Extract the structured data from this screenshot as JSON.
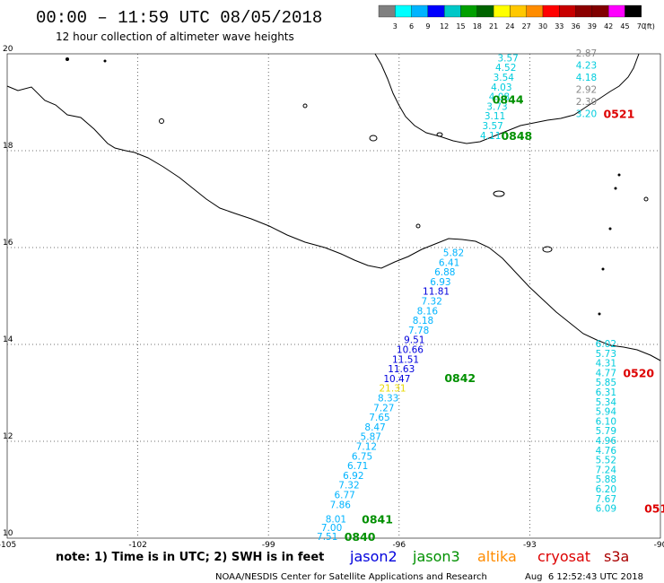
{
  "title": "00:00 – 11:59 UTC 08/05/2018",
  "subtitle": "12 hour collection of altimeter wave heights",
  "legend": {
    "ticks": [
      "3",
      "6",
      "9",
      "12",
      "15",
      "18",
      "21",
      "24",
      "27",
      "30",
      "33",
      "36",
      "39",
      "42",
      "45",
      "70"
    ],
    "unit": "(ft)",
    "colors": [
      "#808080",
      "#00ffff",
      "#00b4ff",
      "#0000ff",
      "#00c8c8",
      "#00a000",
      "#006400",
      "#ffff00",
      "#ffc800",
      "#ff8c00",
      "#ff0000",
      "#c80000",
      "#8b0000",
      "#800000",
      "#ff00ff",
      "#000000"
    ]
  },
  "footer": {
    "note": "note: 1) Time is in UTC; 2) SWH is in feet",
    "satellites": [
      {
        "name": "jason2",
        "color": "#0000dd"
      },
      {
        "name": "jason3",
        "color": "#009000"
      },
      {
        "name": "altika",
        "color": "#ff8c00"
      },
      {
        "name": "cryosat",
        "color": "#dd0000"
      },
      {
        "name": "s3a",
        "color": "#aa0000"
      }
    ],
    "credit": "NOAA/NESDIS Center for Satellite Applications and Research",
    "timestamp": "Aug  6 12:52:43 UTC 2018"
  },
  "chart_data": {
    "type": "scatter",
    "x_ticks": [
      "-105",
      "-102",
      "-99",
      "-96",
      "-93",
      "-90"
    ],
    "y_ticks": [
      "10",
      "12",
      "14",
      "16",
      "18",
      "20"
    ],
    "xlim": [
      -105,
      -90
    ],
    "ylim": [
      10,
      20
    ],
    "grid": true,
    "series": [
      {
        "points": [
          {
            "lon": -93.5,
            "lat": 19.9,
            "v": "3.57",
            "c": "#00ccdd"
          },
          {
            "lon": -93.55,
            "lat": 19.7,
            "v": "4.52",
            "c": "#00ccdd"
          },
          {
            "lon": -93.6,
            "lat": 19.5,
            "v": "3.54",
            "c": "#00ccdd"
          },
          {
            "lon": -93.65,
            "lat": 19.3,
            "v": "4.03",
            "c": "#00ccdd"
          },
          {
            "lon": -93.7,
            "lat": 19.1,
            "v": "4.08",
            "c": "#00ccdd"
          },
          {
            "lon": -93.75,
            "lat": 18.9,
            "v": "3.73",
            "c": "#00ccdd"
          },
          {
            "lon": -93.8,
            "lat": 18.7,
            "v": "3.11",
            "c": "#00ccdd"
          },
          {
            "lon": -93.85,
            "lat": 18.5,
            "v": "3.57",
            "c": "#00ccdd"
          },
          {
            "lon": -93.9,
            "lat": 18.3,
            "v": "4.11",
            "c": "#00ccdd"
          }
        ],
        "times": [
          {
            "lon": -93.5,
            "lat": 19.05,
            "t": "0844",
            "c": "#009000"
          },
          {
            "lon": -93.3,
            "lat": 18.3,
            "t": "0848",
            "c": "#009000"
          }
        ]
      },
      {
        "points": [
          {
            "lon": -91.7,
            "lat": 20.0,
            "v": "2.87",
            "c": "#888888"
          },
          {
            "lon": -91.7,
            "lat": 19.75,
            "v": "4.23",
            "c": "#00ccdd"
          },
          {
            "lon": -91.7,
            "lat": 19.5,
            "v": "4.18",
            "c": "#00ccdd"
          },
          {
            "lon": -91.7,
            "lat": 19.25,
            "v": "2.92",
            "c": "#888888"
          },
          {
            "lon": -91.7,
            "lat": 19.0,
            "v": "2.30",
            "c": "#888888"
          },
          {
            "lon": -91.7,
            "lat": 18.75,
            "v": "3.20",
            "c": "#00ccdd"
          }
        ],
        "times": [
          {
            "lon": -90.95,
            "lat": 18.75,
            "t": "0521",
            "c": "#dd0000"
          }
        ]
      },
      {
        "points": [
          {
            "lon": -94.75,
            "lat": 15.88,
            "v": "5.82",
            "c": "#00b4ff"
          },
          {
            "lon": -94.85,
            "lat": 15.68,
            "v": "6.41",
            "c": "#00b4ff"
          },
          {
            "lon": -94.95,
            "lat": 15.48,
            "v": "6.88",
            "c": "#00b4ff"
          },
          {
            "lon": -95.05,
            "lat": 15.28,
            "v": "6.93",
            "c": "#00b4ff"
          },
          {
            "lon": -95.15,
            "lat": 15.08,
            "v": "11.81",
            "c": "#0000dd"
          },
          {
            "lon": -95.25,
            "lat": 14.88,
            "v": "7.32",
            "c": "#00b4ff"
          },
          {
            "lon": -95.35,
            "lat": 14.68,
            "v": "8.16",
            "c": "#00b4ff"
          },
          {
            "lon": -95.45,
            "lat": 14.48,
            "v": "8.18",
            "c": "#00b4ff"
          },
          {
            "lon": -95.55,
            "lat": 14.28,
            "v": "7.78",
            "c": "#00b4ff"
          },
          {
            "lon": -95.65,
            "lat": 14.08,
            "v": "9.51",
            "c": "#0000dd"
          },
          {
            "lon": -95.75,
            "lat": 13.88,
            "v": "10.66",
            "c": "#0000dd"
          },
          {
            "lon": -95.85,
            "lat": 13.68,
            "v": "11.51",
            "c": "#0000dd"
          },
          {
            "lon": -95.95,
            "lat": 13.48,
            "v": "11.63",
            "c": "#0000dd"
          },
          {
            "lon": -96.05,
            "lat": 13.28,
            "v": "10.47",
            "c": "#0000dd"
          },
          {
            "lon": -96.15,
            "lat": 13.08,
            "v": "21.31",
            "c": "#e8d800"
          },
          {
            "lon": -96.25,
            "lat": 12.88,
            "v": "8.33",
            "c": "#00b4ff"
          },
          {
            "lon": -96.35,
            "lat": 12.68,
            "v": "7.27",
            "c": "#00b4ff"
          },
          {
            "lon": -96.45,
            "lat": 12.48,
            "v": "7.65",
            "c": "#00b4ff"
          },
          {
            "lon": -96.55,
            "lat": 12.28,
            "v": "8.47",
            "c": "#00b4ff"
          },
          {
            "lon": -96.65,
            "lat": 12.08,
            "v": "5.87",
            "c": "#00b4ff"
          },
          {
            "lon": -96.75,
            "lat": 11.88,
            "v": "7.12",
            "c": "#00b4ff"
          },
          {
            "lon": -96.85,
            "lat": 11.68,
            "v": "6.75",
            "c": "#00b4ff"
          },
          {
            "lon": -96.95,
            "lat": 11.48,
            "v": "6.71",
            "c": "#00b4ff"
          },
          {
            "lon": -97.05,
            "lat": 11.28,
            "v": "6.92",
            "c": "#00b4ff"
          },
          {
            "lon": -97.15,
            "lat": 11.08,
            "v": "7.32",
            "c": "#00b4ff"
          },
          {
            "lon": -97.25,
            "lat": 10.88,
            "v": "6.77",
            "c": "#00b4ff"
          },
          {
            "lon": -97.35,
            "lat": 10.68,
            "v": "7.86",
            "c": "#00b4ff"
          },
          {
            "lon": -97.45,
            "lat": 10.38,
            "v": "8.01",
            "c": "#00b4ff"
          },
          {
            "lon": -97.55,
            "lat": 10.2,
            "v": "7.00",
            "c": "#00b4ff"
          },
          {
            "lon": -97.65,
            "lat": 10.02,
            "v": "7.51",
            "c": "#00b4ff"
          }
        ],
        "times": [
          {
            "lon": -94.6,
            "lat": 13.3,
            "t": "0842",
            "c": "#009000"
          },
          {
            "lon": -96.5,
            "lat": 10.38,
            "t": "0841",
            "c": "#009000"
          },
          {
            "lon": -96.9,
            "lat": 10.02,
            "t": "0840",
            "c": "#009000"
          }
        ]
      },
      {
        "points": [
          {
            "lon": -91.25,
            "lat": 14.0,
            "v": "6.02",
            "c": "#00ccdd"
          },
          {
            "lon": -91.25,
            "lat": 13.8,
            "v": "5.73",
            "c": "#00ccdd"
          },
          {
            "lon": -91.25,
            "lat": 13.6,
            "v": "4.31",
            "c": "#00ccdd"
          },
          {
            "lon": -91.25,
            "lat": 13.4,
            "v": "4.77",
            "c": "#00ccdd"
          },
          {
            "lon": -91.25,
            "lat": 13.2,
            "v": "5.85",
            "c": "#00ccdd"
          },
          {
            "lon": -91.25,
            "lat": 13.0,
            "v": "6.31",
            "c": "#00ccdd"
          },
          {
            "lon": -91.25,
            "lat": 12.8,
            "v": "5.34",
            "c": "#00ccdd"
          },
          {
            "lon": -91.25,
            "lat": 12.6,
            "v": "5.94",
            "c": "#00ccdd"
          },
          {
            "lon": -91.25,
            "lat": 12.4,
            "v": "6.10",
            "c": "#00ccdd"
          },
          {
            "lon": -91.25,
            "lat": 12.2,
            "v": "5.79",
            "c": "#00ccdd"
          },
          {
            "lon": -91.25,
            "lat": 12.0,
            "v": "4.96",
            "c": "#00ccdd"
          },
          {
            "lon": -91.25,
            "lat": 11.8,
            "v": "4.76",
            "c": "#00ccdd"
          },
          {
            "lon": -91.25,
            "lat": 11.6,
            "v": "5.52",
            "c": "#00ccdd"
          },
          {
            "lon": -91.25,
            "lat": 11.4,
            "v": "7.24",
            "c": "#00ccdd"
          },
          {
            "lon": -91.25,
            "lat": 11.2,
            "v": "5.88",
            "c": "#00ccdd"
          },
          {
            "lon": -91.25,
            "lat": 11.0,
            "v": "6.20",
            "c": "#00ccdd"
          },
          {
            "lon": -91.25,
            "lat": 10.8,
            "v": "7.67",
            "c": "#00ccdd"
          },
          {
            "lon": -91.25,
            "lat": 10.6,
            "v": "6.09",
            "c": "#00ccdd"
          }
        ],
        "times": [
          {
            "lon": -90.5,
            "lat": 13.4,
            "t": "0520",
            "c": "#dd0000"
          },
          {
            "lon": -90.1,
            "lat": 10.6,
            "t": "051",
            "c": "#dd0000"
          }
        ]
      }
    ]
  }
}
